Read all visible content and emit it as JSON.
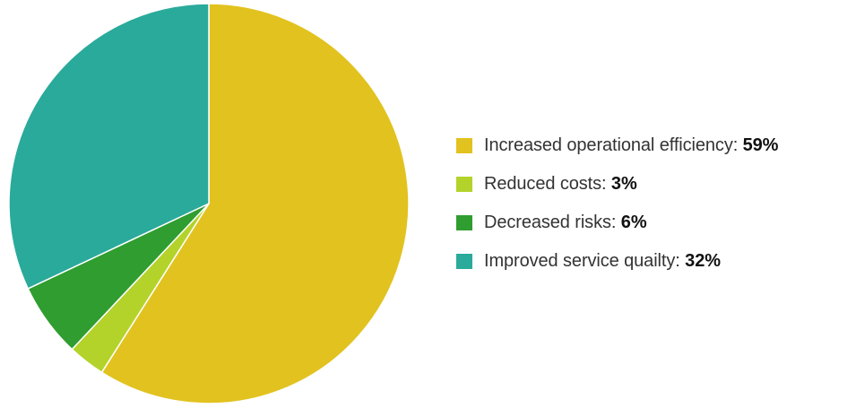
{
  "chart_data": {
    "type": "pie",
    "title": "",
    "start_angle_deg": 0,
    "direction": "clockwise",
    "slice_border_color": "#ffffff",
    "slices": [
      {
        "label": "Increased operational efficiency",
        "value": 59,
        "display_value": "59%",
        "color": "#e2c21f"
      },
      {
        "label": "Reduced costs",
        "value": 3,
        "display_value": "3%",
        "color": "#b3d32a"
      },
      {
        "label": "Decreased risks",
        "value": 6,
        "display_value": "6%",
        "color": "#2f9d2f"
      },
      {
        "label": "Improved service quailty",
        "value": 32,
        "display_value": "32%",
        "color": "#2aaa9b"
      }
    ],
    "legend": {
      "position": "right",
      "separator": ": "
    }
  }
}
